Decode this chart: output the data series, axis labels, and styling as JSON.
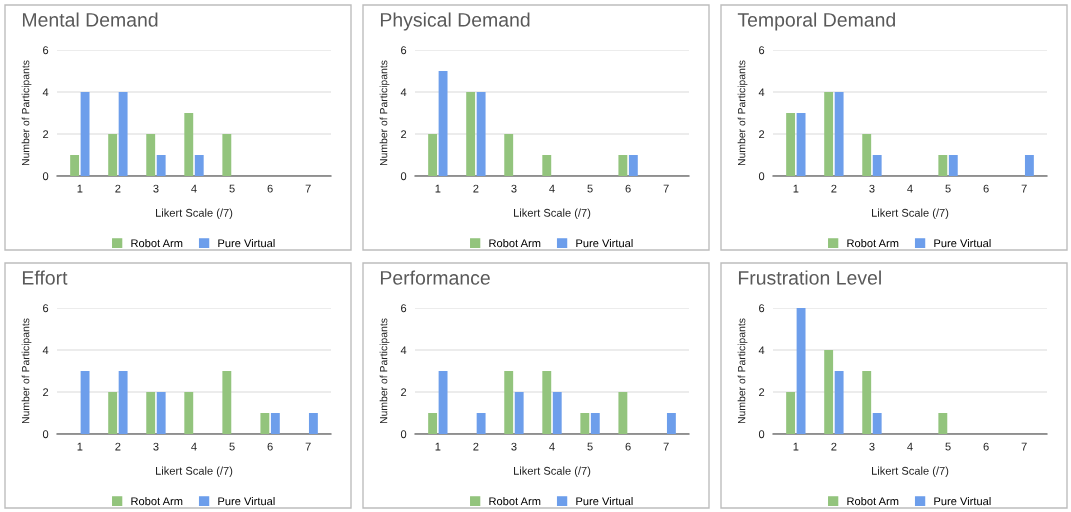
{
  "chart_data": [
    {
      "type": "bar",
      "title": "Mental Demand",
      "xlabel": "Likert Scale (/7)",
      "ylabel": "Number of Participants",
      "categories": [
        "1",
        "2",
        "3",
        "4",
        "5",
        "6",
        "7"
      ],
      "ylim": [
        0,
        6
      ],
      "yticks": [
        0,
        2,
        4,
        6
      ],
      "grid": "y",
      "legend": "bottom",
      "series": [
        {
          "name": "Robot Arm",
          "color": "#93c47d",
          "values": [
            1,
            2,
            2,
            3,
            2,
            0,
            0
          ]
        },
        {
          "name": "Pure Virtual",
          "color": "#6d9eeb",
          "values": [
            4,
            4,
            1,
            1,
            0,
            0,
            0
          ]
        }
      ]
    },
    {
      "type": "bar",
      "title": "Physical Demand",
      "xlabel": "Likert Scale (/7)",
      "ylabel": "Number of Participants",
      "categories": [
        "1",
        "2",
        "3",
        "4",
        "5",
        "6",
        "7"
      ],
      "ylim": [
        0,
        6
      ],
      "yticks": [
        0,
        2,
        4,
        6
      ],
      "grid": "y",
      "legend": "bottom",
      "series": [
        {
          "name": "Robot Arm",
          "color": "#93c47d",
          "values": [
            2,
            4,
            2,
            1,
            0,
            1,
            0
          ]
        },
        {
          "name": "Pure Virtual",
          "color": "#6d9eeb",
          "values": [
            5,
            4,
            0,
            0,
            0,
            1,
            0
          ]
        }
      ]
    },
    {
      "type": "bar",
      "title": "Temporal Demand",
      "xlabel": "Likert Scale (/7)",
      "ylabel": "Number of Participants",
      "categories": [
        "1",
        "2",
        "3",
        "4",
        "5",
        "6",
        "7"
      ],
      "ylim": [
        0,
        6
      ],
      "yticks": [
        0,
        2,
        4,
        6
      ],
      "grid": "y",
      "legend": "bottom",
      "series": [
        {
          "name": "Robot Arm",
          "color": "#93c47d",
          "values": [
            3,
            4,
            2,
            0,
            1,
            0,
            0
          ]
        },
        {
          "name": "Pure Virtual",
          "color": "#6d9eeb",
          "values": [
            3,
            4,
            1,
            0,
            1,
            0,
            1
          ]
        }
      ]
    },
    {
      "type": "bar",
      "title": "Effort",
      "xlabel": "Likert Scale (/7)",
      "ylabel": "Number of Participants",
      "categories": [
        "1",
        "2",
        "3",
        "4",
        "5",
        "6",
        "7"
      ],
      "ylim": [
        0,
        6
      ],
      "yticks": [
        0,
        2,
        4,
        6
      ],
      "grid": "y",
      "legend": "bottom",
      "series": [
        {
          "name": "Robot Arm",
          "color": "#93c47d",
          "values": [
            0,
            2,
            2,
            2,
            3,
            1,
            0
          ]
        },
        {
          "name": "Pure Virtual",
          "color": "#6d9eeb",
          "values": [
            3,
            3,
            2,
            0,
            0,
            1,
            1
          ]
        }
      ]
    },
    {
      "type": "bar",
      "title": "Performance",
      "xlabel": "Likert Scale (/7)",
      "ylabel": "Number of Participants",
      "categories": [
        "1",
        "2",
        "3",
        "4",
        "5",
        "6",
        "7"
      ],
      "ylim": [
        0,
        6
      ],
      "yticks": [
        0,
        2,
        4,
        6
      ],
      "grid": "y",
      "legend": "bottom",
      "series": [
        {
          "name": "Robot Arm",
          "color": "#93c47d",
          "values": [
            1,
            0,
            3,
            3,
            1,
            2,
            0
          ]
        },
        {
          "name": "Pure Virtual",
          "color": "#6d9eeb",
          "values": [
            3,
            1,
            2,
            2,
            1,
            0,
            1
          ]
        }
      ]
    },
    {
      "type": "bar",
      "title": "Frustration Level",
      "xlabel": "Likert Scale (/7)",
      "ylabel": "Number of Participants",
      "categories": [
        "1",
        "2",
        "3",
        "4",
        "5",
        "6",
        "7"
      ],
      "ylim": [
        0,
        6
      ],
      "yticks": [
        0,
        2,
        4,
        6
      ],
      "grid": "y",
      "legend": "bottom",
      "series": [
        {
          "name": "Robot Arm",
          "color": "#93c47d",
          "values": [
            2,
            4,
            3,
            0,
            1,
            0,
            0
          ]
        },
        {
          "name": "Pure Virtual",
          "color": "#6d9eeb",
          "values": [
            6,
            3,
            1,
            0,
            0,
            0,
            0
          ]
        }
      ]
    }
  ]
}
